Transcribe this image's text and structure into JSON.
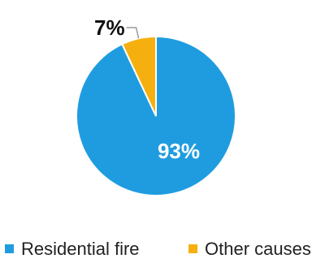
{
  "chart_data": {
    "type": "pie",
    "slices": [
      {
        "name": "Residential fire",
        "value": 93,
        "label": "93%",
        "color": "#1f9ce0"
      },
      {
        "name": "Other causes",
        "value": 7,
        "label": "7%",
        "color": "#f5b00f"
      }
    ],
    "legend_position": "bottom",
    "start_angle_degrees": 0,
    "direction": "clockwise"
  }
}
